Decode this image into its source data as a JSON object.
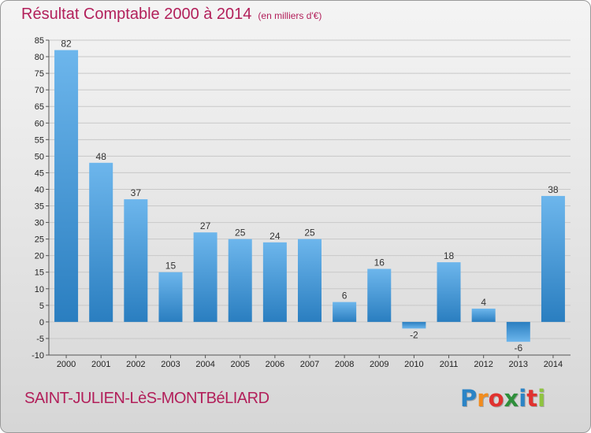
{
  "header": {
    "title": "Résultat Comptable 2000 à 2014",
    "subtitle": "(en milliers d'€)"
  },
  "footer": {
    "commune": "SAINT-JULIEN-LèS-MONTBéLIARD",
    "logo_letters": [
      "P",
      "r",
      "o",
      "x",
      "i",
      "t",
      "i"
    ],
    "logo_colors": [
      "#2b84c6",
      "#f28c1e",
      "#e0322f",
      "#2f8f3b",
      "#2b84c6",
      "#e0322f",
      "#8fc43f"
    ]
  },
  "colors": {
    "bar_top": "#6db6ec",
    "bar_bottom": "#2a7ec0",
    "title": "#b21f5a"
  },
  "chart_data": {
    "type": "bar",
    "title": "Résultat Comptable 2000 à 2014",
    "subtitle": "(en milliers d'€)",
    "xlabel": "",
    "ylabel": "",
    "categories": [
      "2000",
      "2001",
      "2002",
      "2003",
      "2004",
      "2005",
      "2006",
      "2007",
      "2008",
      "2009",
      "2010",
      "2011",
      "2012",
      "2013",
      "2014"
    ],
    "values": [
      82,
      48,
      37,
      15,
      27,
      25,
      24,
      25,
      6,
      16,
      -2,
      18,
      4,
      -6,
      38
    ],
    "ylim": [
      -10,
      85
    ],
    "yticks": [
      -10,
      -5,
      0,
      5,
      10,
      15,
      20,
      25,
      30,
      35,
      40,
      45,
      50,
      55,
      60,
      65,
      70,
      75,
      80,
      85
    ],
    "grid": true
  }
}
